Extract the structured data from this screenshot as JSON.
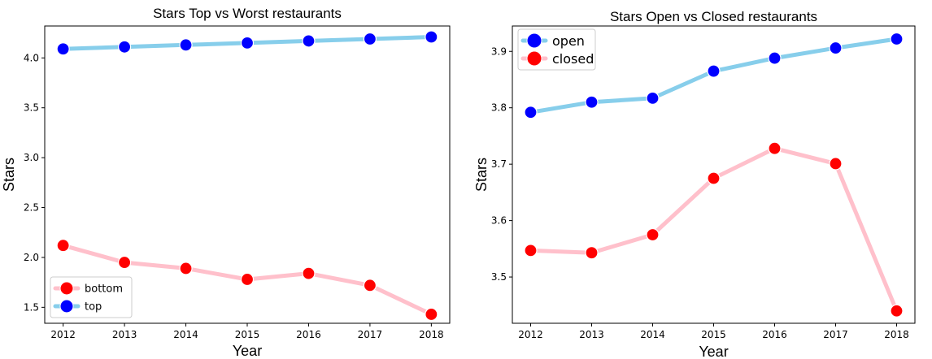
{
  "chart_data": [
    {
      "type": "line",
      "title": "Stars Top vs Worst restaurants",
      "xlabel": "Year",
      "ylabel": "Stars",
      "x": [
        2012,
        2013,
        2014,
        2015,
        2016,
        2017,
        2018
      ],
      "xlim": [
        2011.7,
        2018.3
      ],
      "ylim": [
        1.34,
        4.32
      ],
      "yticks": [
        1.5,
        2.0,
        2.5,
        3.0,
        3.5,
        4.0
      ],
      "ytick_labels": [
        "1.5",
        "2.0",
        "2.5",
        "3.0",
        "3.5",
        "4.0"
      ],
      "grid": false,
      "legend_position": "lower-left",
      "legend_order": [
        0,
        1
      ],
      "series": [
        {
          "name": "bottom",
          "line_color": "#ffc0cb",
          "marker_color": "#ff0000",
          "values": [
            2.12,
            1.95,
            1.89,
            1.78,
            1.84,
            1.72,
            1.43
          ]
        },
        {
          "name": "top",
          "line_color": "#87ceeb",
          "marker_color": "#0000ff",
          "values": [
            4.09,
            4.11,
            4.13,
            4.15,
            4.17,
            4.19,
            4.21
          ]
        }
      ]
    },
    {
      "type": "line",
      "title": "Stars Open vs Closed restaurants",
      "xlabel": "Year",
      "ylabel": "Stars",
      "x": [
        2012,
        2013,
        2014,
        2015,
        2016,
        2017,
        2018
      ],
      "xlim": [
        2011.7,
        2018.3
      ],
      "ylim": [
        3.418,
        3.945
      ],
      "yticks": [
        3.5,
        3.6,
        3.7,
        3.8,
        3.9
      ],
      "ytick_labels": [
        "3.5",
        "3.6",
        "3.7",
        "3.8",
        "3.9"
      ],
      "grid": false,
      "legend_position": "top-left",
      "legend_order": [
        0,
        1
      ],
      "series": [
        {
          "name": "open",
          "line_color": "#87ceeb",
          "marker_color": "#0000ff",
          "values": [
            3.792,
            3.81,
            3.817,
            3.865,
            3.888,
            3.906,
            3.922
          ]
        },
        {
          "name": "closed",
          "line_color": "#ffc0cb",
          "marker_color": "#ff0000",
          "values": [
            3.547,
            3.543,
            3.575,
            3.675,
            3.728,
            3.701,
            3.44
          ]
        }
      ]
    }
  ]
}
